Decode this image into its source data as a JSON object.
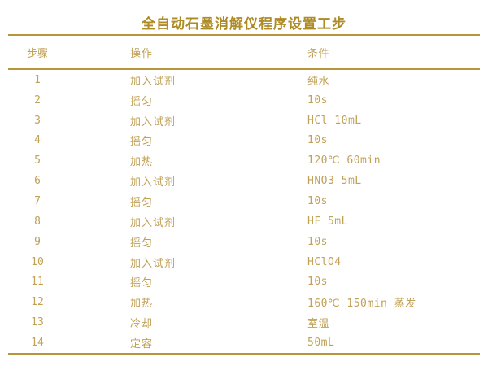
{
  "page": {
    "title": "全自动石墨消解仪程序设置工步"
  },
  "colors": {
    "background": "#FFFFFF",
    "title_text": "#AE8B25",
    "body_text": "#C0A156",
    "rule_line": "#B6953B"
  },
  "table": {
    "headers": {
      "step": "步骤",
      "operation": "操作",
      "condition": "条件"
    },
    "rows": [
      {
        "step": "1",
        "operation": "加入试剂",
        "condition": "纯水"
      },
      {
        "step": "2",
        "operation": "摇匀",
        "condition": "10s"
      },
      {
        "step": "3",
        "operation": "加入试剂",
        "condition": "HCl 10mL"
      },
      {
        "step": "4",
        "operation": "摇匀",
        "condition": "10s"
      },
      {
        "step": "5",
        "operation": "加热",
        "condition": "120℃ 60min"
      },
      {
        "step": "6",
        "operation": "加入试剂",
        "condition": "HNO3 5mL"
      },
      {
        "step": "7",
        "operation": "摇匀",
        "condition": "10s"
      },
      {
        "step": "8",
        "operation": "加入试剂",
        "condition": "HF 5mL"
      },
      {
        "step": "9",
        "operation": "摇匀",
        "condition": "10s"
      },
      {
        "step": "10",
        "operation": "加入试剂",
        "condition": "HClO4"
      },
      {
        "step": "11",
        "operation": "摇匀",
        "condition": "10s"
      },
      {
        "step": "12",
        "operation": "加热",
        "condition": "160℃ 150min 蒸发"
      },
      {
        "step": "13",
        "operation": "冷却",
        "condition": "室温"
      },
      {
        "step": "14",
        "operation": "定容",
        "condition": "50mL"
      }
    ]
  }
}
